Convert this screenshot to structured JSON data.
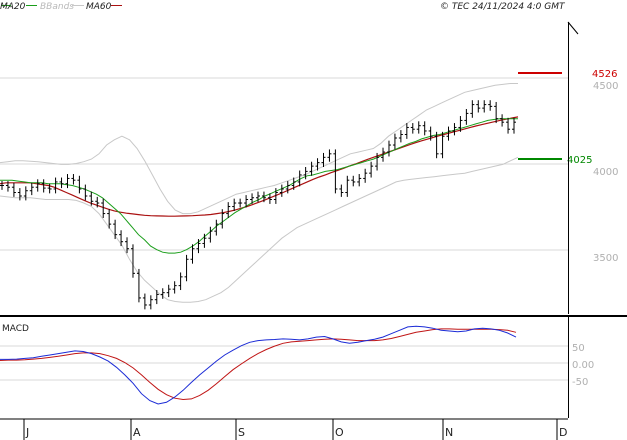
{
  "legend": {
    "ma20": "MA20",
    "bbands": "BBands",
    "ma60": "MA60"
  },
  "copyright": "© TEC 24/11/2024 4:0 GMT",
  "macd_title": "MACD",
  "colors": {
    "ma20": "#1a9e1a",
    "bbands": "#c8c8c8",
    "ma60": "#aa1111",
    "price": "#000000",
    "macd": "#1b2bd6",
    "signal": "#c01515",
    "resistance": "#cc0000",
    "support": "#008800"
  },
  "chart_data": [
    {
      "type": "ohlc",
      "panel": "price",
      "x_tick_labels": [
        "J",
        "A",
        "S",
        "O",
        "N",
        "D"
      ],
      "y_tick_labels": [
        "4500",
        "4000",
        "3500"
      ],
      "y_ticks": [
        4500,
        4000,
        3500
      ],
      "ylim": [
        3200,
        4850
      ],
      "levels": [
        {
          "name": "resistance",
          "value": 4526,
          "label": "4526"
        },
        {
          "name": "support",
          "value": 4025,
          "label": "4025"
        }
      ],
      "price_series": {
        "close": [
          3920,
          3910,
          3880,
          3860,
          3890,
          3910,
          3930,
          3905,
          3900,
          3940,
          3930,
          3960,
          3950,
          3900,
          3860,
          3830,
          3820,
          3760,
          3700,
          3640,
          3600,
          3560,
          3420,
          3280,
          3240,
          3270,
          3300,
          3310,
          3330,
          3350,
          3400,
          3500,
          3560,
          3590,
          3620,
          3660,
          3700,
          3760,
          3800,
          3820,
          3820,
          3840,
          3850,
          3860,
          3850,
          3840,
          3880,
          3900,
          3920,
          3940,
          3980,
          4000,
          4030,
          4050,
          4080,
          4100,
          3900,
          3880,
          3950,
          3940,
          3960,
          3990,
          4030,
          4080,
          4110,
          4150,
          4190,
          4210,
          4250,
          4240,
          4260,
          4230,
          4200,
          4100,
          4200,
          4230,
          4250,
          4290,
          4330,
          4380,
          4360,
          4380,
          4370,
          4300,
          4280,
          4240,
          4280
        ],
        "ma20": [
          3950,
          3950,
          3950,
          3945,
          3940,
          3935,
          3935,
          3935,
          3930,
          3930,
          3930,
          3925,
          3920,
          3910,
          3900,
          3885,
          3870,
          3850,
          3820,
          3790,
          3760,
          3720,
          3680,
          3640,
          3610,
          3575,
          3555,
          3540,
          3535,
          3535,
          3540,
          3555,
          3575,
          3600,
          3630,
          3660,
          3690,
          3715,
          3740,
          3765,
          3785,
          3805,
          3825,
          3840,
          3860,
          3875,
          3890,
          3905,
          3920,
          3940,
          3960,
          3975,
          3980,
          3990,
          4000,
          4005,
          4010,
          4020,
          4030,
          4040,
          4050,
          4060,
          4070,
          4085,
          4100,
          4115,
          4130,
          4145,
          4160,
          4170,
          4185,
          4195,
          4205,
          4210,
          4220,
          4230,
          4240,
          4250,
          4260,
          4270,
          4280,
          4290,
          4295,
          4300,
          4300,
          4300,
          4300
        ],
        "ma60": [
          3930,
          3935,
          3935,
          3935,
          3935,
          3935,
          3930,
          3925,
          3920,
          3910,
          3895,
          3880,
          3865,
          3850,
          3835,
          3820,
          3808,
          3796,
          3785,
          3775,
          3768,
          3762,
          3758,
          3754,
          3750,
          3748,
          3747,
          3746,
          3745,
          3745,
          3746,
          3747,
          3748,
          3750,
          3752,
          3755,
          3760,
          3765,
          3772,
          3780,
          3790,
          3800,
          3812,
          3825,
          3838,
          3852,
          3866,
          3880,
          3895,
          3910,
          3925,
          3940,
          3955,
          3968,
          3980,
          3993,
          4005,
          4017,
          4030,
          4042,
          4055,
          4068,
          4080,
          4092,
          4104,
          4116,
          4128,
          4140,
          4152,
          4163,
          4174,
          4184,
          4194,
          4204,
          4213,
          4222,
          4231,
          4240,
          4249,
          4258,
          4266,
          4274,
          4282,
          4290,
          4297,
          4304,
          4310
        ],
        "bb_upper": [
          4050,
          4055,
          4060,
          4060,
          4058,
          4055,
          4050,
          4045,
          4040,
          4040,
          4045,
          4055,
          4070,
          4100,
          4150,
          4180,
          4200,
          4180,
          4130,
          4060,
          3980,
          3900,
          3830,
          3780,
          3760,
          3760,
          3770,
          3790,
          3810,
          3830,
          3850,
          3870,
          3880,
          3890,
          3900,
          3910,
          3920,
          3935,
          3950,
          3965,
          3980,
          4000,
          4020,
          4040,
          4060,
          4080,
          4100,
          4110,
          4120,
          4130,
          4160,
          4200,
          4230,
          4260,
          4290,
          4320,
          4350,
          4370,
          4390,
          4410,
          4430,
          4450,
          4460,
          4470,
          4480,
          4490,
          4495,
          4500,
          4500
        ],
        "bb_lower": [
          3860,
          3855,
          3850,
          3850,
          3850,
          3845,
          3840,
          3840,
          3840,
          3840,
          3835,
          3820,
          3800,
          3760,
          3700,
          3640,
          3580,
          3500,
          3430,
          3380,
          3340,
          3300,
          3270,
          3260,
          3255,
          3255,
          3260,
          3270,
          3290,
          3310,
          3340,
          3380,
          3420,
          3460,
          3500,
          3540,
          3580,
          3620,
          3650,
          3680,
          3700,
          3720,
          3740,
          3760,
          3780,
          3800,
          3820,
          3840,
          3860,
          3880,
          3900,
          3920,
          3940,
          3950,
          3955,
          3960,
          3965,
          3970,
          3975,
          3980,
          3985,
          3990,
          4000,
          4010,
          4020,
          4030,
          4040,
          4060,
          4080
        ]
      }
    },
    {
      "type": "line",
      "panel": "macd",
      "title": "MACD",
      "y_tick_labels": [
        "50",
        "0.00",
        "-50"
      ],
      "y_ticks": [
        50,
        0,
        -50
      ],
      "ylim": [
        -160,
        120
      ],
      "series": [
        {
          "name": "MACD",
          "values": [
            5,
            5,
            6,
            8,
            10,
            14,
            18,
            22,
            26,
            30,
            28,
            22,
            12,
            0,
            -18,
            -40,
            -65,
            -95,
            -115,
            -125,
            -120,
            -105,
            -85,
            -62,
            -40,
            -20,
            0,
            18,
            32,
            45,
            55,
            60,
            62,
            63,
            65,
            64,
            62,
            65,
            70,
            72,
            65,
            56,
            52,
            55,
            60,
            64,
            70,
            80,
            90,
            100,
            102,
            100,
            96,
            90,
            88,
            86,
            88,
            94,
            96,
            94,
            90,
            82,
            70
          ]
        },
        {
          "name": "Signal",
          "values": [
            2,
            3,
            3,
            4,
            6,
            8,
            11,
            14,
            18,
            22,
            24,
            24,
            22,
            16,
            8,
            -4,
            -20,
            -40,
            -62,
            -82,
            -98,
            -108,
            -112,
            -110,
            -100,
            -85,
            -66,
            -45,
            -25,
            -8,
            8,
            22,
            34,
            44,
            52,
            56,
            58,
            60,
            62,
            64,
            65,
            64,
            62,
            60,
            60,
            60,
            62,
            66,
            72,
            78,
            84,
            88,
            92,
            94,
            94,
            93,
            93,
            93,
            93,
            93,
            92,
            90,
            84
          ]
        }
      ]
    }
  ]
}
